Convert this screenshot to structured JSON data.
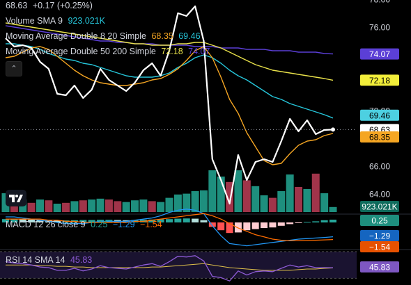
{
  "header": {
    "price": "68.63",
    "change": "+0.17 (+0.25%)"
  },
  "legend": {
    "volume": {
      "label": "Volume SMA 9",
      "value": "923.021K"
    },
    "ma1": {
      "label": "Moving Average Double 8 20 Simple",
      "v1": "68.35",
      "v2": "69.46"
    },
    "ma2": {
      "label": "Moving Average Double 50 200 Simple",
      "v1": "72.18",
      "v2": "74.07"
    },
    "macd": {
      "label": "MACD 12 26 close 9",
      "v1": "0.25",
      "v2": "−1.29",
      "v3": "−1.54"
    },
    "rsi": {
      "label": "RSI 14 SMA 14",
      "value": "45.83"
    }
  },
  "colors": {
    "price": "#ffffff",
    "ma8": "#f5a623",
    "ma20": "#26c6da",
    "ma50": "#e8e14a",
    "ma200": "#5b3fd6",
    "vol_up": "#1e8f7e",
    "vol_down": "#a0344a",
    "rsi": "#8e5bd6"
  },
  "icons": {
    "collapse": "chevron-up-icon",
    "logo": "tradingview-logo"
  },
  "chart_data": [
    {
      "type": "line",
      "title": "",
      "y_ticks": [
        64.0,
        66.0,
        68.0,
        70.0,
        74.0,
        76.0,
        78.0
      ],
      "ylim": [
        62.7,
        78.0
      ],
      "series": [
        {
          "name": "Price",
          "values": [
            75.2,
            74.6,
            74.7,
            74.5,
            73.5,
            73.0,
            71.2,
            71.1,
            71.8,
            70.9,
            71.5,
            73.0,
            72.2,
            71.8,
            71.4,
            72.0,
            72.9,
            73.4,
            72.5,
            74.3,
            77.0,
            76.8,
            77.5,
            75.0,
            66.5,
            65.0,
            63.3,
            66.8,
            65.0,
            66.3,
            66.5,
            66.3,
            67.8,
            69.4,
            68.5,
            69.3,
            68.3,
            68.6,
            68.63
          ]
        },
        {
          "name": "MA 8",
          "values": [
            73.8,
            73.9,
            74.2,
            74.5,
            74.6,
            74.4,
            73.9,
            73.4,
            72.9,
            72.5,
            72.2,
            72.0,
            71.9,
            71.8,
            71.8,
            71.9,
            72.0,
            72.2,
            72.3,
            72.6,
            73.0,
            73.6,
            74.3,
            74.6,
            73.8,
            72.4,
            70.8,
            69.8,
            68.4,
            67.4,
            66.4,
            66.1,
            66.2,
            66.9,
            67.5,
            67.8,
            67.9,
            68.2,
            68.35
          ]
        },
        {
          "name": "MA 20",
          "values": [
            74.8,
            74.8,
            74.7,
            74.6,
            74.4,
            74.1,
            73.9,
            73.7,
            73.6,
            73.4,
            73.3,
            73.1,
            72.9,
            72.7,
            72.5,
            72.4,
            72.4,
            72.4,
            72.5,
            72.7,
            73.1,
            73.4,
            73.8,
            74.0,
            73.8,
            73.4,
            72.9,
            72.5,
            72.2,
            71.8,
            71.4,
            71.0,
            70.8,
            70.5,
            70.3,
            70.1,
            69.9,
            69.7,
            69.46
          ]
        },
        {
          "name": "MA 50",
          "values": [
            76.3,
            76.2,
            76.1,
            76.0,
            75.9,
            75.8,
            75.7,
            75.6,
            75.5,
            75.4,
            75.3,
            75.2,
            75.1,
            75.0,
            74.9,
            74.8,
            74.8,
            74.7,
            74.7,
            74.7,
            74.8,
            74.8,
            74.9,
            74.9,
            74.7,
            74.5,
            74.2,
            73.9,
            73.6,
            73.3,
            73.1,
            72.9,
            72.8,
            72.7,
            72.6,
            72.5,
            72.4,
            72.3,
            72.18
          ]
        },
        {
          "name": "MA 200",
          "values": [
            76.1,
            76.0,
            75.9,
            75.8,
            75.7,
            75.6,
            75.5,
            75.4,
            75.3,
            75.2,
            75.1,
            75.0,
            75.0,
            74.9,
            74.9,
            74.8,
            74.8,
            74.8,
            74.7,
            74.7,
            74.7,
            74.7,
            74.6,
            74.6,
            74.6,
            74.5,
            74.5,
            74.5,
            74.4,
            74.4,
            74.4,
            74.3,
            74.3,
            74.3,
            74.2,
            74.2,
            74.2,
            74.1,
            74.07
          ]
        }
      ],
      "volume": {
        "values": [
          0.45,
          0.4,
          0.3,
          0.22,
          0.3,
          0.28,
          0.2,
          0.22,
          0.26,
          0.28,
          0.3,
          0.32,
          0.3,
          0.26,
          0.24,
          0.28,
          0.3,
          0.26,
          0.24,
          0.34,
          0.42,
          0.44,
          0.5,
          0.52,
          1.0,
          0.85,
          0.72,
          1.0,
          0.76,
          0.62,
          0.4,
          0.34,
          0.5,
          0.9,
          0.6,
          0.55,
          0.92,
          0.45,
          0.12
        ],
        "up": [
          true,
          false,
          true,
          false,
          true,
          false,
          true,
          false,
          true,
          false,
          true,
          true,
          false,
          false,
          true,
          true,
          true,
          false,
          true,
          true,
          true,
          true,
          true,
          true,
          true,
          true,
          false,
          true,
          false,
          true,
          true,
          false,
          true,
          true,
          false,
          true,
          false,
          true,
          true
        ],
        "sma_label": "923.021K"
      },
      "labels": {
        "ma8": "68.35",
        "ma20": "69.46",
        "ma50": "72.18",
        "ma200": "74.07",
        "last": "68.63",
        "volume": "923.021K"
      }
    },
    {
      "type": "bar",
      "title": "MACD 12 26 close 9",
      "histogram": [
        0.3,
        0.32,
        0.3,
        0.25,
        0.22,
        0.2,
        0.18,
        0.18,
        0.2,
        0.22,
        0.22,
        0.24,
        0.24,
        0.22,
        0.2,
        0.22,
        0.24,
        0.26,
        0.28,
        0.3,
        0.34,
        0.36,
        0.34,
        0.2,
        -0.4,
        -0.7,
        -0.95,
        -0.9,
        -0.7,
        -0.6,
        -0.5,
        -0.45,
        -0.3,
        -0.15,
        -0.05,
        0.05,
        0.1,
        0.2,
        0.25
      ],
      "macd": [
        0.5,
        0.5,
        0.4,
        0.3,
        0.2,
        0.1,
        0.0,
        -0.1,
        -0.1,
        -0.1,
        0.0,
        0.1,
        0.1,
        0.1,
        0.1,
        0.2,
        0.3,
        0.4,
        0.6,
        0.9,
        1.1,
        1.2,
        1.1,
        0.8,
        -0.3,
        -1.2,
        -1.9,
        -2.0,
        -2.1,
        -2.0,
        -1.9,
        -1.8,
        -1.7,
        -1.6,
        -1.5,
        -1.45,
        -1.4,
        -1.35,
        -1.29
      ],
      "signal": [
        0.3,
        0.3,
        0.3,
        0.3,
        0.3,
        0.2,
        0.2,
        0.1,
        0.1,
        0.0,
        0.0,
        0.0,
        0.0,
        0.0,
        0.0,
        0.1,
        0.1,
        0.2,
        0.3,
        0.4,
        0.5,
        0.6,
        0.7,
        0.8,
        0.6,
        0.3,
        -0.1,
        -0.5,
        -0.8,
        -1.1,
        -1.3,
        -1.5,
        -1.6,
        -1.65,
        -1.65,
        -1.62,
        -1.6,
        -1.57,
        -1.54
      ],
      "labels": {
        "hist": "0.25",
        "macd": "−1.29",
        "signal": "−1.54"
      }
    },
    {
      "type": "line",
      "title": "RSI 14 SMA 14",
      "rsi": [
        55,
        53,
        52,
        50,
        47,
        46,
        42,
        42,
        45,
        41,
        44,
        49,
        46,
        45,
        44,
        47,
        50,
        52,
        48,
        55,
        63,
        62,
        64,
        56,
        33,
        31,
        26,
        41,
        35,
        40,
        41,
        40,
        45,
        50,
        47,
        49,
        46,
        46,
        45.83
      ],
      "rsi_sma": [
        50,
        50,
        50,
        50,
        49,
        49,
        48,
        48,
        47,
        47,
        46,
        46,
        46,
        46,
        46,
        46,
        46,
        47,
        47,
        48,
        49,
        50,
        51,
        52,
        50,
        48,
        46,
        45,
        44,
        43,
        42,
        42,
        42,
        42,
        43,
        44,
        44,
        45,
        45.5
      ],
      "labels": {
        "rsi": "45.83"
      }
    }
  ]
}
